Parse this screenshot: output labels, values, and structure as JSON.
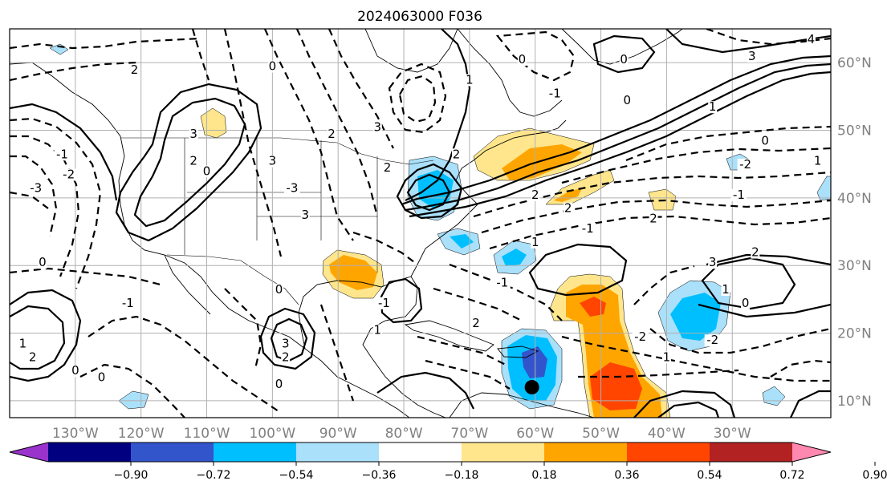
{
  "title": "2024063000 F036",
  "map": {
    "projection": "equirectangular",
    "lon_range": [
      -140,
      -15
    ],
    "lat_range": [
      7.5,
      65
    ],
    "lat_labels": [
      {
        "lat": 60,
        "text": "60°N"
      },
      {
        "lat": 50,
        "text": "50°N"
      },
      {
        "lat": 40,
        "text": "40°N"
      },
      {
        "lat": 30,
        "text": "30°N"
      },
      {
        "lat": 20,
        "text": "20°N"
      },
      {
        "lat": 10,
        "text": "10°N"
      }
    ],
    "lon_labels": [
      {
        "lon": -130,
        "text": "130°W"
      },
      {
        "lon": -120,
        "text": "120°W"
      },
      {
        "lon": -110,
        "text": "110°W"
      },
      {
        "lon": -100,
        "text": "100°W"
      },
      {
        "lon": -90,
        "text": "90°W"
      },
      {
        "lon": -80,
        "text": "80°W"
      },
      {
        "lon": -70,
        "text": "70°W"
      },
      {
        "lon": -60,
        "text": "60°W"
      },
      {
        "lon": -50,
        "text": "50°W"
      },
      {
        "lon": -40,
        "text": "40°W"
      },
      {
        "lon": -30,
        "text": "30°W"
      }
    ],
    "grid": true,
    "contour_labels": [
      {
        "lon": -121,
        "lat": 58.5,
        "text": "2"
      },
      {
        "lon": -112,
        "lat": 49,
        "text": "3"
      },
      {
        "lon": -112,
        "lat": 45,
        "text": "2"
      },
      {
        "lon": -110,
        "lat": 43.5,
        "text": "0"
      },
      {
        "lon": -136,
        "lat": 41,
        "text": "-3"
      },
      {
        "lon": -132,
        "lat": 46,
        "text": "-1"
      },
      {
        "lon": -131,
        "lat": 43,
        "text": "-2"
      },
      {
        "lon": -135,
        "lat": 30,
        "text": "0"
      },
      {
        "lon": -138,
        "lat": 18,
        "text": "1"
      },
      {
        "lon": -136.5,
        "lat": 16,
        "text": "2"
      },
      {
        "lon": -130,
        "lat": 14,
        "text": "0"
      },
      {
        "lon": -126,
        "lat": 13,
        "text": "0"
      },
      {
        "lon": -122,
        "lat": 24,
        "text": "-1"
      },
      {
        "lon": -100,
        "lat": 59,
        "text": "0"
      },
      {
        "lon": -100,
        "lat": 45,
        "text": "3"
      },
      {
        "lon": -97,
        "lat": 41,
        "text": "-3"
      },
      {
        "lon": -95,
        "lat": 37,
        "text": "3"
      },
      {
        "lon": -91,
        "lat": 49,
        "text": "2"
      },
      {
        "lon": -84,
        "lat": 50,
        "text": "3"
      },
      {
        "lon": -82.5,
        "lat": 44,
        "text": "2"
      },
      {
        "lon": -99,
        "lat": 26,
        "text": "0"
      },
      {
        "lon": -98,
        "lat": 18,
        "text": "3"
      },
      {
        "lon": -98,
        "lat": 16,
        "text": "2"
      },
      {
        "lon": -99,
        "lat": 12,
        "text": "0"
      },
      {
        "lon": -83,
        "lat": 24,
        "text": "-1"
      },
      {
        "lon": -84,
        "lat": 20,
        "text": "1"
      },
      {
        "lon": -72,
        "lat": 46,
        "text": "2"
      },
      {
        "lon": -70,
        "lat": 57,
        "text": "1"
      },
      {
        "lon": -62,
        "lat": 60,
        "text": "0"
      },
      {
        "lon": -57,
        "lat": 55,
        "text": "-1"
      },
      {
        "lon": -46,
        "lat": 54,
        "text": "0"
      },
      {
        "lon": -60,
        "lat": 40,
        "text": "2"
      },
      {
        "lon": -55,
        "lat": 38,
        "text": "2"
      },
      {
        "lon": -52,
        "lat": 35,
        "text": "-1"
      },
      {
        "lon": -42,
        "lat": 36.5,
        "text": "2"
      },
      {
        "lon": -60,
        "lat": 33,
        "text": "1"
      },
      {
        "lon": -65,
        "lat": 27,
        "text": "-1"
      },
      {
        "lon": -69,
        "lat": 21,
        "text": "2"
      },
      {
        "lon": -44,
        "lat": 19,
        "text": "-2"
      },
      {
        "lon": -40,
        "lat": 16,
        "text": "1"
      },
      {
        "lon": -33,
        "lat": 30,
        "text": "3"
      },
      {
        "lon": -26.5,
        "lat": 31.5,
        "text": "2"
      },
      {
        "lon": -31,
        "lat": 26,
        "text": "1"
      },
      {
        "lon": -28,
        "lat": 24,
        "text": "0"
      },
      {
        "lon": -33,
        "lat": 18.5,
        "text": "-2"
      },
      {
        "lon": -25,
        "lat": 48,
        "text": "0"
      },
      {
        "lon": -29,
        "lat": 40,
        "text": "-1"
      },
      {
        "lon": -28,
        "lat": 44.5,
        "text": "-2"
      },
      {
        "lon": -33,
        "lat": 53,
        "text": "1"
      },
      {
        "lon": -27,
        "lat": 60.5,
        "text": "3"
      },
      {
        "lon": -18,
        "lat": 63,
        "text": "4"
      },
      {
        "lon": -17,
        "lat": 45,
        "text": "1"
      },
      {
        "lon": -46.5,
        "lat": 60,
        "text": "0"
      }
    ]
  },
  "colorbar": {
    "ticks": [
      "−0.90",
      "−0.72",
      "−0.54",
      "−0.36",
      "−0.18",
      "0.18",
      "0.36",
      "0.54",
      "0.72",
      "0.90"
    ],
    "colors": [
      "#9933cc",
      "#000080",
      "#3355cc",
      "#00bfff",
      "#aae0fa",
      "#ffffff",
      "#ffe68c",
      "#ffa500",
      "#ff4500",
      "#b22222",
      "#ff88b0"
    ],
    "extend": "both"
  },
  "marker": {
    "lon": -60.5,
    "lat": 12,
    "color": "#000000"
  }
}
